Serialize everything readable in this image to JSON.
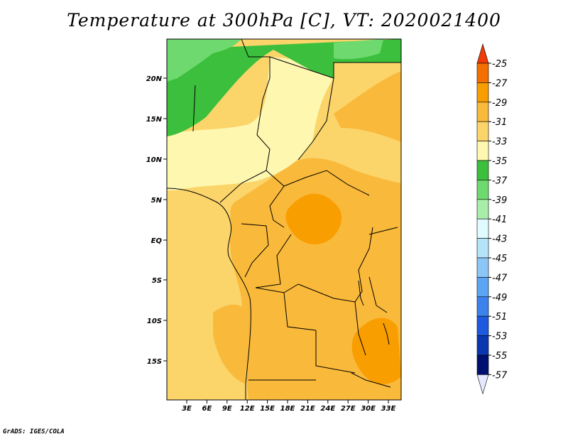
{
  "title": "Temperature at 300hPa [C], VT: 2020021400",
  "credit": "GrADS: IGES/COLA",
  "lat_labels": [
    "20N",
    "15N",
    "10N",
    "5N",
    "EQ",
    "5S",
    "10S",
    "15S"
  ],
  "lon_labels": [
    "3E",
    "6E",
    "9E",
    "12E",
    "15E",
    "18E",
    "21E",
    "24E",
    "27E",
    "30E",
    "33E"
  ],
  "colorbar": {
    "levels": [
      "-25",
      "-27",
      "-29",
      "-31",
      "-33",
      "-35",
      "-37",
      "-39",
      "-41",
      "-43",
      "-45",
      "-47",
      "-49",
      "-51",
      "-53",
      "-55",
      "-57"
    ],
    "colors": [
      "#f03c0a",
      "#f46e00",
      "#f89e00",
      "#f9b93a",
      "#fbd46a",
      "#fef7b0",
      "#3cbf3c",
      "#6ed96e",
      "#a8eda8",
      "#e0fbff",
      "#b4e4fa",
      "#8cc6f7",
      "#5aa6f3",
      "#3c82ec",
      "#1e5ae0",
      "#0a37b0",
      "#001070",
      "#e6e8ff"
    ]
  },
  "field_colors": {
    "t29": "#f89e00",
    "t31": "#f9b93a",
    "t33": "#fbd46a",
    "t35": "#fef7b0",
    "t37": "#3cbf3c",
    "t39": "#6ed96e"
  }
}
